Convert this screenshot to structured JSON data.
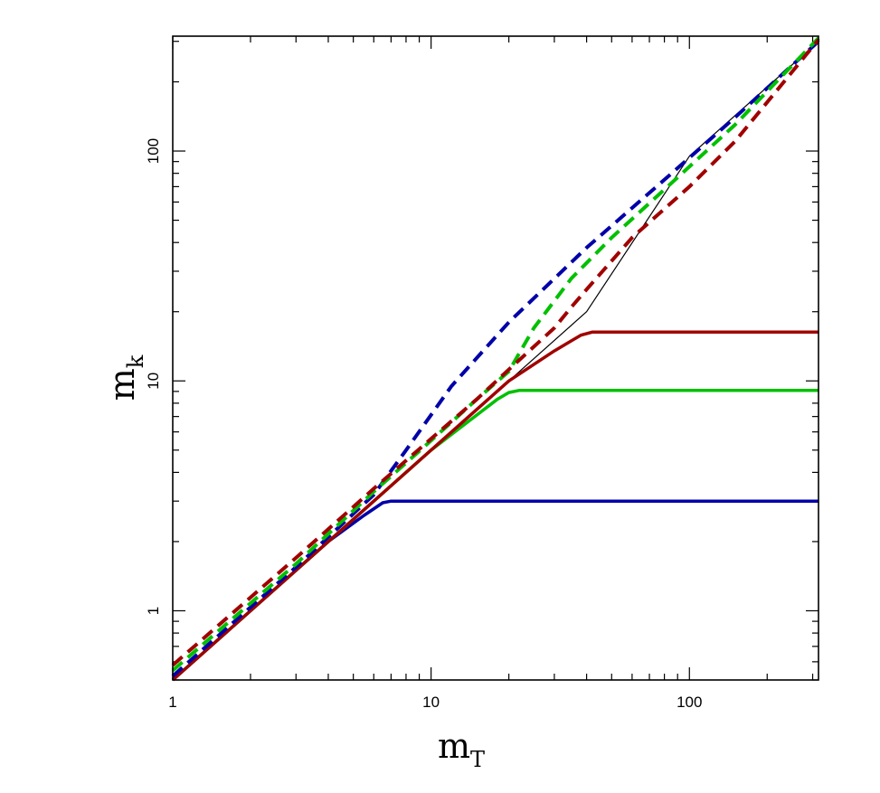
{
  "chart_data": {
    "type": "line",
    "xscale": "log",
    "yscale": "log",
    "xlim": [
      1,
      316
    ],
    "ylim": [
      0.5,
      316
    ],
    "xlabel": "m",
    "xlabel_sub": "T",
    "ylabel": "m",
    "ylabel_sub": "k",
    "x_ticks": [
      {
        "value": 1,
        "label": "1"
      },
      {
        "value": 10,
        "label": "10"
      },
      {
        "value": 100,
        "label": "100"
      }
    ],
    "y_ticks": [
      {
        "value": 1,
        "label": "1"
      },
      {
        "value": 10,
        "label": "10"
      },
      {
        "value": 100,
        "label": "100"
      }
    ],
    "grid": false,
    "legend": "none",
    "series": [
      {
        "color": "#0000a8",
        "style": "solid",
        "x": [
          1,
          2,
          4,
          5.5,
          6.5,
          7,
          10,
          30,
          100,
          316
        ],
        "y": [
          0.5,
          1.0,
          2.0,
          2.6,
          2.95,
          3.0,
          3.0,
          3.0,
          3.0,
          3.0
        ]
      },
      {
        "color": "#00c000",
        "style": "solid",
        "x": [
          1,
          2,
          5,
          10,
          18,
          20,
          22,
          30,
          100,
          316
        ],
        "y": [
          0.5,
          1.0,
          2.5,
          5.0,
          8.3,
          8.9,
          9.1,
          9.1,
          9.1,
          9.1
        ]
      },
      {
        "color": "#a00000",
        "style": "solid",
        "x": [
          1,
          2,
          5,
          10,
          20,
          30,
          38,
          42,
          60,
          100,
          316
        ],
        "y": [
          0.5,
          1.0,
          2.5,
          5.0,
          10.0,
          13.5,
          15.8,
          16.3,
          16.3,
          16.3,
          16.3
        ]
      },
      {
        "color": "#000000",
        "style": "thin",
        "x": [
          1,
          20,
          40,
          100,
          316
        ],
        "y": [
          0.5,
          10.0,
          20.0,
          95.0,
          300.0
        ]
      },
      {
        "color": "#0000a8",
        "style": "dashed",
        "x": [
          1,
          3,
          6,
          8,
          12,
          20,
          40,
          80,
          150,
          316
        ],
        "y": [
          0.52,
          1.55,
          3.2,
          5.0,
          9.5,
          18.0,
          38.0,
          75.0,
          140.0,
          300.0
        ]
      },
      {
        "color": "#00c000",
        "style": "dashed",
        "x": [
          1,
          3,
          6,
          10,
          15,
          20,
          25,
          35,
          50,
          80,
          150,
          316
        ],
        "y": [
          0.55,
          1.6,
          3.3,
          5.5,
          8.3,
          11.0,
          17.0,
          28.0,
          42.0,
          68.0,
          130.0,
          310.0
        ]
      },
      {
        "color": "#a00000",
        "style": "dashed",
        "x": [
          1,
          3,
          6,
          10,
          15,
          20,
          30,
          35,
          40,
          60,
          100,
          150,
          316
        ],
        "y": [
          0.58,
          1.7,
          3.4,
          5.6,
          8.3,
          11.2,
          17.0,
          21.0,
          25.0,
          42.0,
          70.0,
          110.0,
          305.0
        ]
      }
    ]
  }
}
